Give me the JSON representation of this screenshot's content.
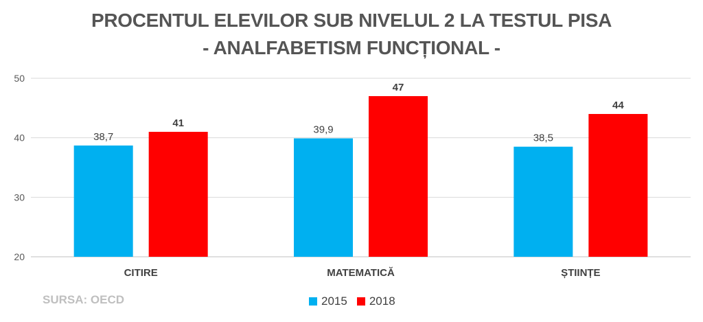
{
  "chart_data": {
    "type": "bar",
    "title_line_1": "PROCENTUL ELEVILOR SUB NIVELUL 2 LA TESTUL PISA",
    "title_line_2": "- ANALFABETISM FUNCȚIONAL -",
    "categories": [
      "CITIRE",
      "MATEMATICĂ",
      "ȘTIINȚE"
    ],
    "series": [
      {
        "name": "2015",
        "values": [
          38.7,
          39.9,
          38.5
        ],
        "labels": [
          "38,7",
          "39,9",
          "38,5"
        ],
        "color": "#00b0f0"
      },
      {
        "name": "2018",
        "values": [
          41,
          47,
          44
        ],
        "labels": [
          "41",
          "47",
          "44"
        ],
        "color": "#ff0000"
      }
    ],
    "ylim": [
      20,
      50
    ],
    "yticks": [
      20,
      30,
      40,
      50
    ],
    "grid": true,
    "legend_position": "bottom"
  },
  "source_note": "SURSA: OECD"
}
